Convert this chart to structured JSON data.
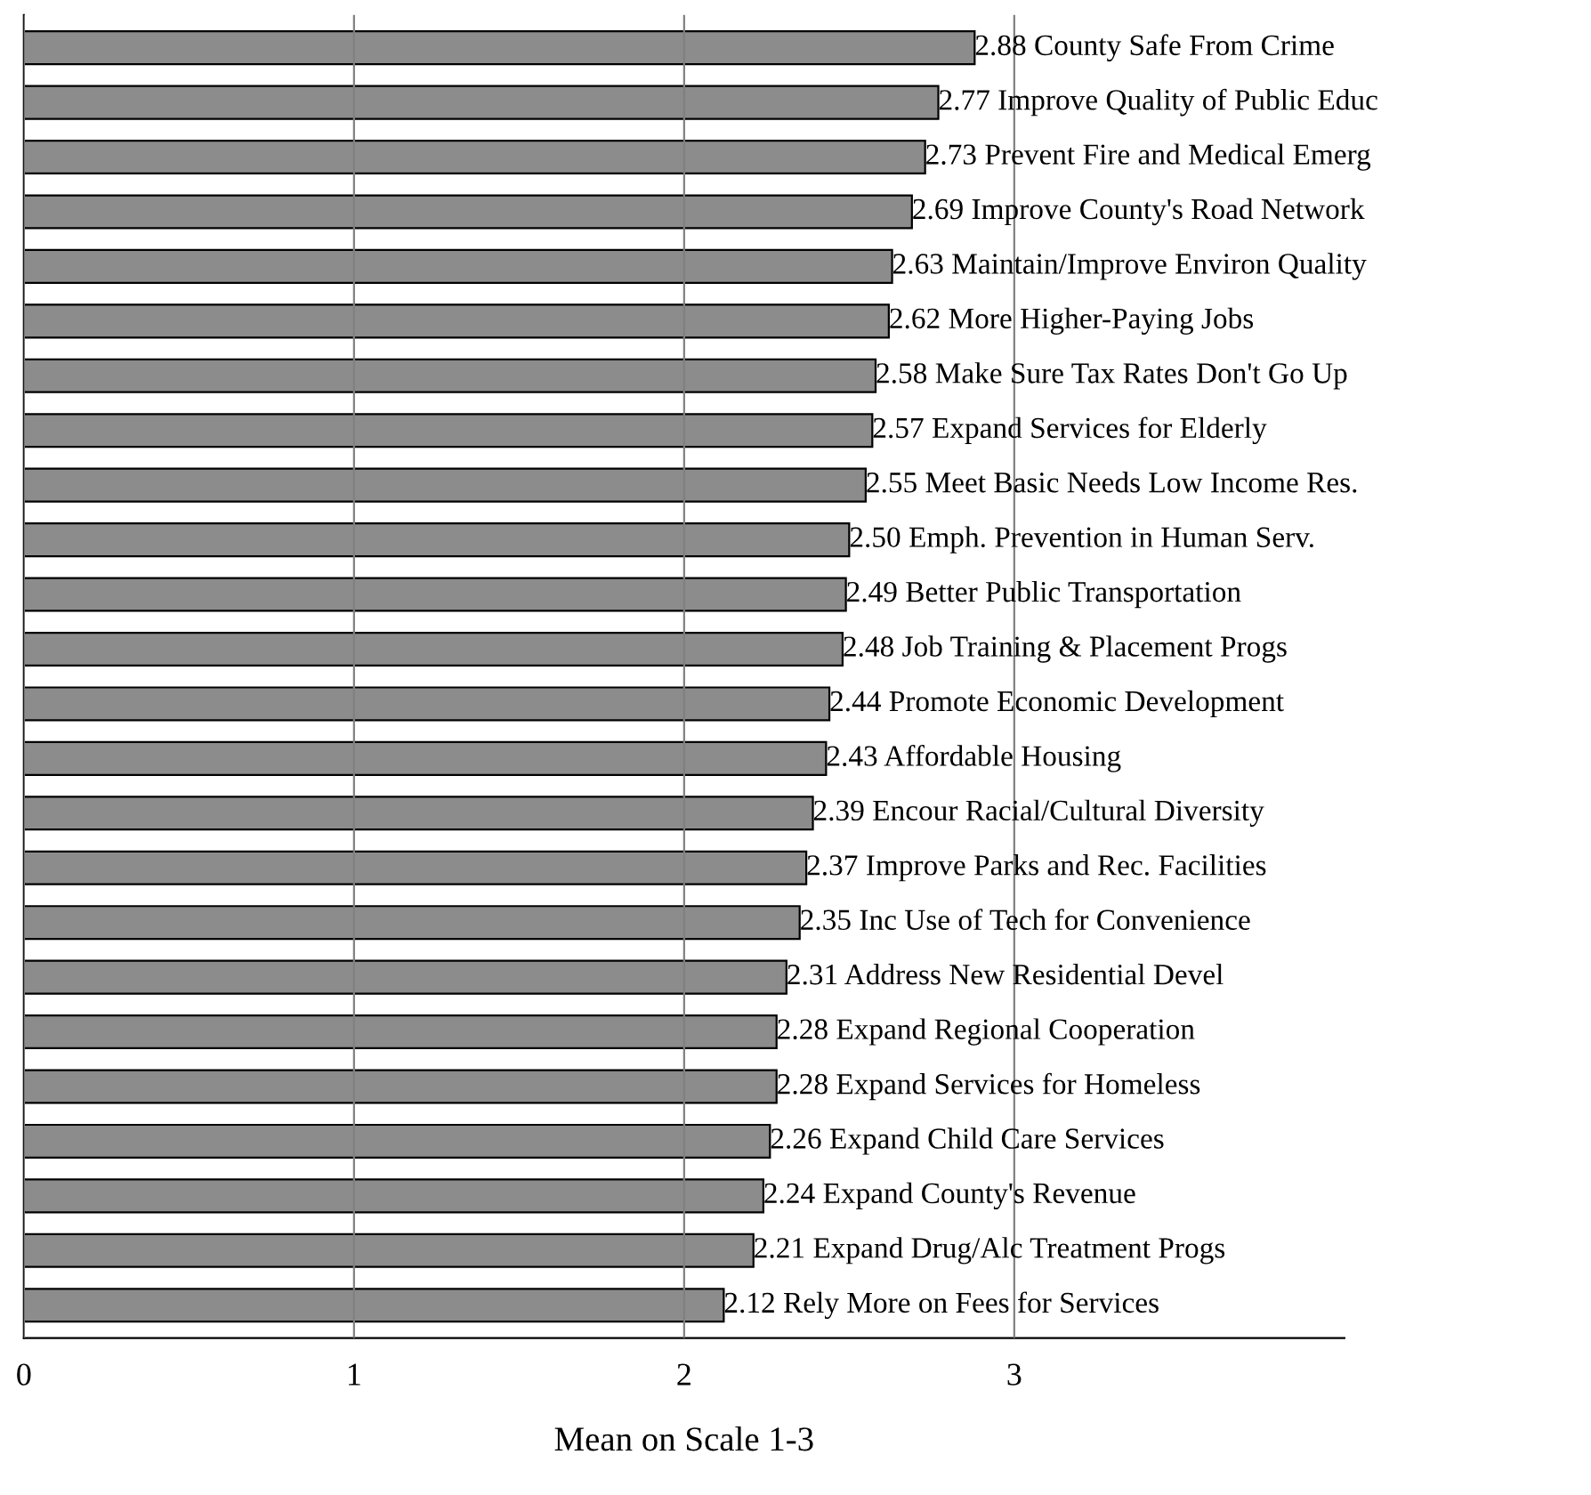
{
  "chart_data": {
    "type": "bar",
    "orientation": "horizontal",
    "xlabel": "Mean on Scale 1-3",
    "categories": [
      "County Safe From Crime",
      "Improve Quality of Public Educ",
      "Prevent Fire and Medical Emerg",
      "Improve County's Road Network",
      "Maintain/Improve Environ Quality",
      "More Higher-Paying Jobs",
      "Make Sure Tax Rates Don't Go Up",
      "Expand Services for Elderly",
      "Meet Basic Needs Low Income Res.",
      "Emph. Prevention in Human Serv.",
      "Better Public Transportation",
      "Job Training & Placement Progs",
      "Promote Economic Development",
      "Affordable Housing",
      "Encour Racial/Cultural Diversity",
      "Improve Parks and Rec. Facilities",
      "Inc Use of Tech for Convenience",
      "Address New Residential Devel",
      "Expand Regional Cooperation",
      "Expand Services for Homeless",
      "Expand Child Care Services",
      "Expand County's Revenue",
      "Expand Drug/Alc Treatment Progs",
      "Rely More on Fees for Services"
    ],
    "values": [
      2.88,
      2.77,
      2.73,
      2.69,
      2.63,
      2.62,
      2.58,
      2.57,
      2.55,
      2.5,
      2.49,
      2.48,
      2.44,
      2.43,
      2.39,
      2.37,
      2.35,
      2.31,
      2.28,
      2.28,
      2.26,
      2.24,
      2.21,
      2.12
    ],
    "value_labels": [
      "2.88",
      "2.77",
      "2.73",
      "2.69",
      "2.63",
      "2.62",
      "2.58",
      "2.57",
      "2.55",
      "2.50",
      "2.49",
      "2.48",
      "2.44",
      "2.43",
      "2.39",
      "2.37",
      "2.35",
      "2.31",
      "2.28",
      "2.28",
      "2.26",
      "2.24",
      "2.21",
      "2.12"
    ],
    "color": "#8c8c8c",
    "xlim": [
      0,
      4
    ],
    "xticks": [
      0,
      1,
      2,
      3
    ],
    "grid": "x",
    "tick_labels": "x"
  }
}
